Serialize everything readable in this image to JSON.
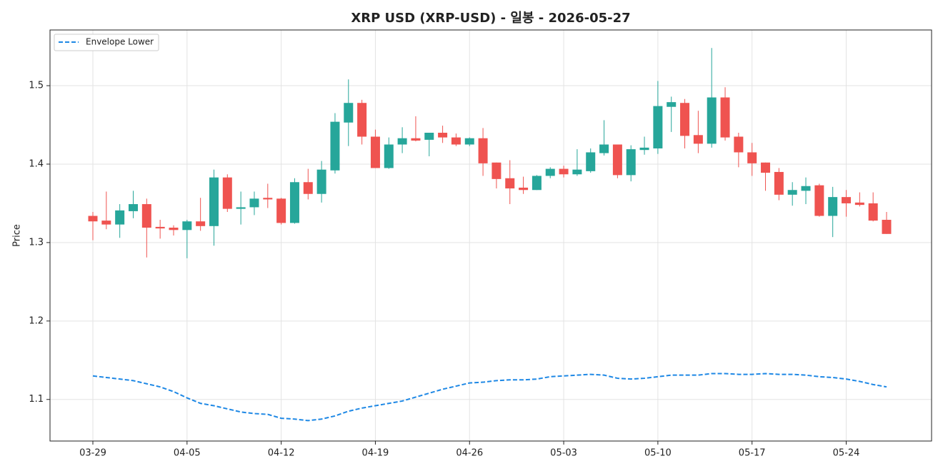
{
  "chart_data": {
    "type": "candlestick",
    "title": "XRP USD (XRP-USD) - 일봉 - 2026-05-27",
    "y_label": "Price",
    "x": [
      "03-29",
      "03-30",
      "03-31",
      "04-01",
      "04-02",
      "04-03",
      "04-04",
      "04-05",
      "04-06",
      "04-07",
      "04-08",
      "04-09",
      "04-10",
      "04-11",
      "04-12",
      "04-13",
      "04-14",
      "04-15",
      "04-16",
      "04-17",
      "04-18",
      "04-19",
      "04-20",
      "04-21",
      "04-22",
      "04-23",
      "04-24",
      "04-25",
      "04-26",
      "04-27",
      "04-28",
      "04-29",
      "04-30",
      "05-01",
      "05-02",
      "05-03",
      "05-04",
      "05-05",
      "05-06",
      "05-07",
      "05-08",
      "05-09",
      "05-10",
      "05-11",
      "05-12",
      "05-13",
      "05-14",
      "05-15",
      "05-16",
      "05-17",
      "05-18",
      "05-19",
      "05-20",
      "05-21",
      "05-22",
      "05-23",
      "05-24",
      "05-25",
      "05-26",
      "05-27"
    ],
    "open": [
      1.334,
      1.328,
      1.323,
      1.34,
      1.349,
      1.32,
      1.319,
      1.316,
      1.327,
      1.321,
      1.383,
      1.343,
      1.345,
      1.357,
      1.356,
      1.325,
      1.377,
      1.362,
      1.392,
      1.453,
      1.478,
      1.435,
      1.395,
      1.425,
      1.433,
      1.431,
      1.44,
      1.434,
      1.425,
      1.433,
      1.402,
      1.382,
      1.37,
      1.367,
      1.385,
      1.394,
      1.387,
      1.391,
      1.414,
      1.425,
      1.386,
      1.418,
      1.42,
      1.473,
      1.478,
      1.437,
      1.426,
      1.485,
      1.435,
      1.415,
      1.402,
      1.39,
      1.361,
      1.366,
      1.373,
      1.334,
      1.358,
      1.351,
      1.35,
      1.329
    ],
    "high": [
      1.339,
      1.365,
      1.349,
      1.366,
      1.356,
      1.329,
      1.322,
      1.329,
      1.357,
      1.393,
      1.387,
      1.365,
      1.365,
      1.375,
      1.357,
      1.382,
      1.394,
      1.404,
      1.465,
      1.508,
      1.482,
      1.444,
      1.434,
      1.447,
      1.461,
      1.44,
      1.449,
      1.439,
      1.434,
      1.446,
      1.402,
      1.405,
      1.384,
      1.386,
      1.396,
      1.398,
      1.419,
      1.42,
      1.456,
      1.425,
      1.424,
      1.435,
      1.506,
      1.486,
      1.483,
      1.468,
      1.548,
      1.498,
      1.44,
      1.427,
      1.402,
      1.395,
      1.377,
      1.383,
      1.375,
      1.371,
      1.367,
      1.364,
      1.364,
      1.339
    ],
    "low": [
      1.303,
      1.317,
      1.306,
      1.331,
      1.281,
      1.305,
      1.309,
      1.28,
      1.315,
      1.296,
      1.339,
      1.323,
      1.335,
      1.344,
      1.323,
      1.324,
      1.355,
      1.351,
      1.388,
      1.423,
      1.425,
      1.395,
      1.394,
      1.414,
      1.429,
      1.41,
      1.427,
      1.423,
      1.423,
      1.385,
      1.369,
      1.349,
      1.362,
      1.367,
      1.382,
      1.383,
      1.385,
      1.389,
      1.411,
      1.382,
      1.378,
      1.412,
      1.413,
      1.441,
      1.42,
      1.414,
      1.421,
      1.43,
      1.396,
      1.385,
      1.366,
      1.354,
      1.347,
      1.349,
      1.333,
      1.307,
      1.333,
      1.346,
      1.327,
      1.311
    ],
    "close": [
      1.327,
      1.323,
      1.341,
      1.349,
      1.319,
      1.318,
      1.316,
      1.327,
      1.321,
      1.383,
      1.343,
      1.345,
      1.356,
      1.355,
      1.325,
      1.377,
      1.362,
      1.393,
      1.454,
      1.478,
      1.435,
      1.395,
      1.425,
      1.433,
      1.43,
      1.44,
      1.434,
      1.425,
      1.433,
      1.401,
      1.381,
      1.369,
      1.367,
      1.385,
      1.394,
      1.387,
      1.393,
      1.415,
      1.425,
      1.386,
      1.419,
      1.421,
      1.474,
      1.479,
      1.436,
      1.426,
      1.485,
      1.434,
      1.415,
      1.401,
      1.389,
      1.361,
      1.367,
      1.372,
      1.334,
      1.358,
      1.35,
      1.348,
      1.328,
      1.311
    ],
    "up_color": "#26a69a",
    "down_color": "#ef5350",
    "series": [
      {
        "name": "Envelope Lower",
        "color": "#1e88e5",
        "dashed": true,
        "values": [
          1.13,
          1.128,
          1.126,
          1.124,
          1.12,
          1.116,
          1.11,
          1.102,
          1.095,
          1.092,
          1.088,
          1.084,
          1.082,
          1.081,
          1.076,
          1.075,
          1.073,
          1.075,
          1.079,
          1.085,
          1.089,
          1.092,
          1.095,
          1.098,
          1.103,
          1.108,
          1.113,
          1.117,
          1.121,
          1.122,
          1.124,
          1.125,
          1.125,
          1.126,
          1.129,
          1.13,
          1.131,
          1.132,
          1.131,
          1.127,
          1.126,
          1.127,
          1.129,
          1.131,
          1.131,
          1.131,
          1.133,
          1.133,
          1.132,
          1.132,
          1.133,
          1.132,
          1.132,
          1.131,
          1.129,
          1.128,
          1.126,
          1.123,
          1.119,
          1.116
        ]
      }
    ],
    "ylim": [
      1.047,
      1.571
    ],
    "yticks": [
      1.1,
      1.2,
      1.3,
      1.4,
      1.5
    ],
    "xticks": [
      "03-29",
      "04-05",
      "04-12",
      "04-19",
      "04-26",
      "05-03",
      "05-10",
      "05-17",
      "05-24"
    ],
    "grid": true,
    "legend": "upper left"
  }
}
